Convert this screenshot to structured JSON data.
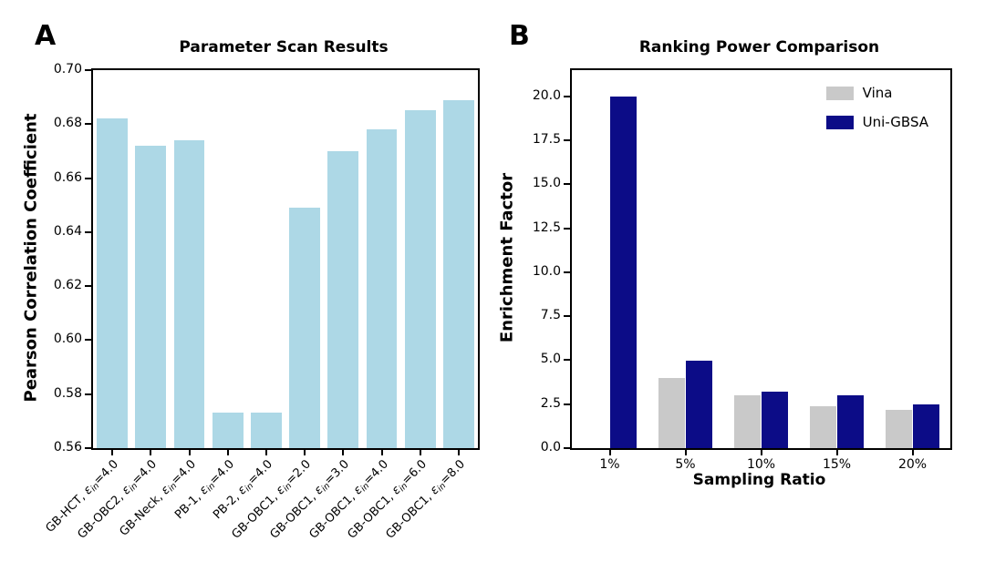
{
  "figure": {
    "panels": [
      {
        "letter": "A"
      },
      {
        "letter": "B"
      }
    ]
  },
  "chart_data": [
    {
      "type": "bar",
      "panel": "A",
      "title": "Parameter Scan Results",
      "xlabel": "",
      "ylabel": "Pearson Correlation Coefficient",
      "ylim": [
        0.56,
        0.7
      ],
      "ytick_step": 0.02,
      "grid": false,
      "bar_color": "#add8e6",
      "categories": [
        {
          "model": "GB-HCT",
          "eps": "4.0"
        },
        {
          "model": "GB-OBC2",
          "eps": "4.0"
        },
        {
          "model": "GB-Neck",
          "eps": "4.0"
        },
        {
          "model": "PB-1",
          "eps": "4.0"
        },
        {
          "model": "PB-2",
          "eps": "4.0"
        },
        {
          "model": "GB-OBC1",
          "eps": "2.0"
        },
        {
          "model": "GB-OBC1",
          "eps": "3.0"
        },
        {
          "model": "GB-OBC1",
          "eps": "4.0"
        },
        {
          "model": "GB-OBC1",
          "eps": "6.0"
        },
        {
          "model": "GB-OBC1",
          "eps": "8.0"
        }
      ],
      "values": [
        0.682,
        0.672,
        0.674,
        0.573,
        0.573,
        0.649,
        0.67,
        0.678,
        0.685,
        0.689
      ]
    },
    {
      "type": "grouped-bar",
      "panel": "B",
      "title": "Ranking Power Comparison",
      "xlabel": "Sampling Ratio",
      "ylabel": "Enrichment Factor",
      "ylim": [
        0,
        21.5
      ],
      "ytick_step": 2.5,
      "ytick_max": 20.0,
      "grid": false,
      "legend_position": "upper right",
      "categories": [
        "1%",
        "5%",
        "10%",
        "15%",
        "20%"
      ],
      "series": [
        {
          "name": "Vina",
          "color": "#c9c9c9",
          "values": [
            0.0,
            4.0,
            3.0,
            2.4,
            2.2
          ]
        },
        {
          "name": "Uni-GBSA",
          "color": "#0c0c87",
          "values": [
            20.0,
            5.0,
            3.2,
            3.0,
            2.5
          ]
        }
      ]
    }
  ]
}
